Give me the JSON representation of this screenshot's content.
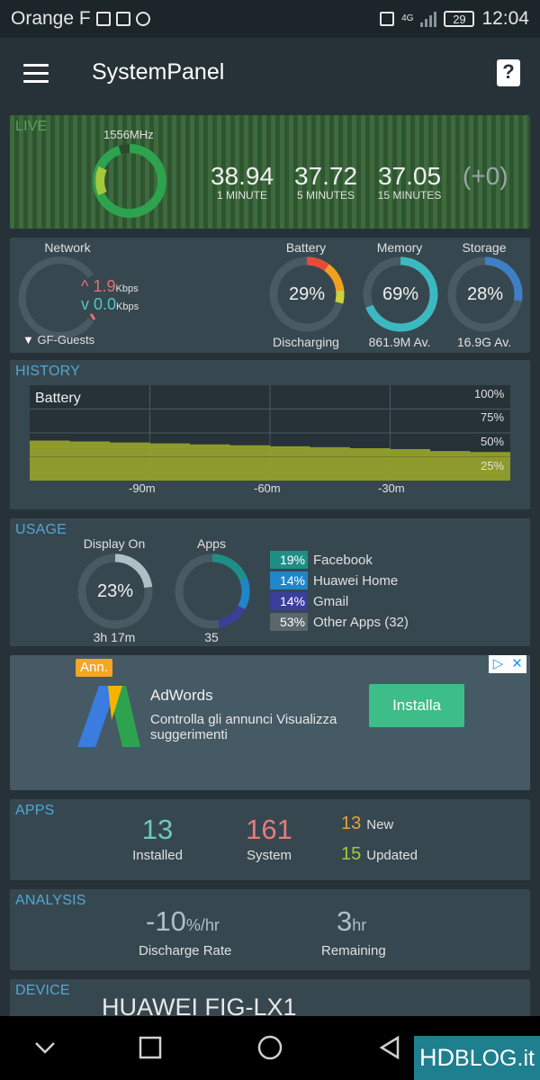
{
  "status_bar": {
    "carrier": "Orange F",
    "network_type": "4G",
    "battery_level": "29",
    "time": "12:04",
    "icons": [
      "gallery-icon",
      "mail-icon",
      "telegram-icon",
      "nfc-icon",
      "signal-icon",
      "battery-icon"
    ]
  },
  "app_bar": {
    "title": "SystemPanel",
    "help_glyph": "?"
  },
  "live": {
    "title": "LIVE",
    "cpu_freq": "1556MHz",
    "cpu_ring_fraction": 0.95,
    "loads": [
      {
        "value": "38.94",
        "label": "1 MINUTE"
      },
      {
        "value": "37.72",
        "label": "5 MINUTES"
      },
      {
        "value": "37.05",
        "label": "15 MINUTES"
      }
    ],
    "delta": "(+0)"
  },
  "gauges": {
    "network": {
      "label": "Network",
      "up_value": "1.9",
      "up_unit": "Kbps",
      "down_value": "0.0",
      "down_unit": "Kbps",
      "ssid": "GF-Guests"
    },
    "battery": {
      "label": "Battery",
      "percent": "29%",
      "fraction": 0.29,
      "sub": "Discharging"
    },
    "memory": {
      "label": "Memory",
      "percent": "69%",
      "fraction": 0.69,
      "sub": "861.9M Av."
    },
    "storage": {
      "label": "Storage",
      "percent": "28%",
      "fraction": 0.28,
      "sub": "16.9G Av."
    }
  },
  "history": {
    "title": "HISTORY",
    "series_label": "Battery",
    "y_ticks": [
      "100%",
      "75%",
      "50%",
      "25%"
    ],
    "x_ticks": [
      "-90m",
      "-60m",
      "-30m"
    ]
  },
  "chart_data": {
    "type": "area",
    "x": [
      -120,
      -110,
      -100,
      -90,
      -80,
      -70,
      -60,
      -50,
      -40,
      -30,
      -20,
      -10,
      0
    ],
    "series": [
      {
        "name": "Battery",
        "values": [
          42,
          41,
          40,
          39,
          38,
          37,
          36,
          35,
          34,
          33,
          31,
          30,
          29
        ]
      }
    ],
    "ylim": [
      0,
      100
    ],
    "y_ticks": [
      "100%",
      "75%",
      "50%",
      "25%"
    ],
    "x_ticks": [
      "-90m",
      "-60m",
      "-30m"
    ],
    "color": "#9aa52a",
    "grid": true
  },
  "usage": {
    "title": "USAGE",
    "display_on": {
      "label": "Display On",
      "percent": "23%",
      "fraction": 0.23,
      "sub": "3h 17m"
    },
    "apps": {
      "label": "Apps",
      "sub": "35"
    },
    "legend": [
      {
        "pct": "19%",
        "name": "Facebook",
        "fraction": 0.19,
        "color": "#1e8f86"
      },
      {
        "pct": "14%",
        "name": "Huawei Home",
        "fraction": 0.14,
        "color": "#1f86c9"
      },
      {
        "pct": "14%",
        "name": "Gmail",
        "fraction": 0.14,
        "color": "#3a3f9a"
      },
      {
        "pct": "53%",
        "name": "Other Apps (32)",
        "fraction": 0.53,
        "color": "#5a666c"
      }
    ]
  },
  "ad": {
    "badge": "Ann.",
    "title": "AdWords",
    "description": "Controlla gli annunci Visualizza suggerimenti",
    "button": "Installa",
    "choices_play": "▷",
    "choices_close": "✕"
  },
  "apps": {
    "title": "APPS",
    "installed": {
      "value": "13",
      "label": "Installed"
    },
    "system": {
      "value": "161",
      "label": "System"
    },
    "new": {
      "value": "13",
      "label": "New"
    },
    "updated": {
      "value": "15",
      "label": "Updated"
    }
  },
  "analysis": {
    "title": "ANALYSIS",
    "discharge_value": "-10",
    "discharge_unit": "%/hr",
    "discharge_label": "Discharge Rate",
    "remaining_value": "3",
    "remaining_unit": "hr",
    "remaining_label": "Remaining"
  },
  "device": {
    "title": "DEVICE",
    "name": "HUAWEI FIG-LX1"
  },
  "watermark": {
    "hd": "HD",
    "blog": "BLOG.it"
  },
  "colors": {
    "accent_blue": "#4fa8d6",
    "live_green": "#59a35a",
    "battery_red": "#e84a3a",
    "battery_orange": "#f0a020",
    "memory_teal": "#3cb8c0",
    "storage_blue": "#3f7fc7",
    "apps_installed": "#6fc7c2",
    "apps_system": "#e87a7a",
    "apps_new": "#e8a23a",
    "apps_updated": "#a6c83c"
  }
}
